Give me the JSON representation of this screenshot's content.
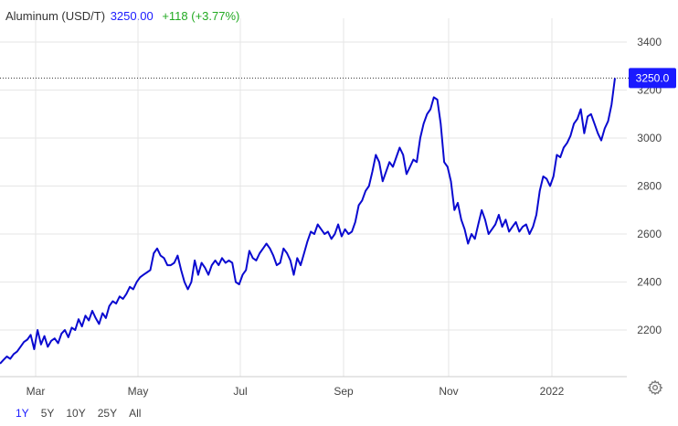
{
  "header": {
    "instrument": "Aluminum (USD/T)",
    "price": "3250.00",
    "change": "+118 (+3.77%)"
  },
  "current_label": "3250.0",
  "range_buttons": [
    {
      "label": "1Y",
      "active": true
    },
    {
      "label": "5Y",
      "active": false
    },
    {
      "label": "10Y",
      "active": false
    },
    {
      "label": "25Y",
      "active": false
    },
    {
      "label": "All",
      "active": false
    }
  ],
  "colors": {
    "line": "#0a0ad0",
    "accent": "#1a1aff",
    "positive": "#22aa22",
    "grid": "#e6e6e6"
  },
  "icons": {
    "settings": "gear-icon"
  },
  "chart_data": {
    "type": "line",
    "title": "Aluminum (USD/T)",
    "xlabel": "",
    "ylabel": "",
    "x_ticks": [
      "Mar",
      "May",
      "Jul",
      "Sep",
      "Nov",
      "2022"
    ],
    "y_ticks": [
      2200,
      2400,
      2600,
      2800,
      3000,
      3200,
      3400
    ],
    "ylim": [
      2020,
      3520
    ],
    "grid": true,
    "current_value": 3250.0,
    "series": [
      {
        "values": [
          2060,
          2075,
          2090,
          2080,
          2100,
          2110,
          2130,
          2150,
          2160,
          2180,
          2120,
          2200,
          2140,
          2175,
          2130,
          2155,
          2165,
          2145,
          2185,
          2200,
          2170,
          2210,
          2200,
          2245,
          2215,
          2260,
          2240,
          2280,
          2250,
          2225,
          2270,
          2250,
          2300,
          2320,
          2310,
          2340,
          2330,
          2350,
          2380,
          2370,
          2400,
          2420,
          2430,
          2440,
          2450,
          2520,
          2540,
          2510,
          2500,
          2470,
          2470,
          2480,
          2510,
          2450,
          2400,
          2370,
          2400,
          2490,
          2430,
          2480,
          2460,
          2430,
          2470,
          2490,
          2470,
          2500,
          2480,
          2490,
          2480,
          2400,
          2390,
          2430,
          2450,
          2530,
          2500,
          2490,
          2520,
          2540,
          2560,
          2540,
          2510,
          2470,
          2480,
          2540,
          2520,
          2490,
          2430,
          2500,
          2470,
          2520,
          2570,
          2610,
          2600,
          2640,
          2620,
          2600,
          2610,
          2580,
          2600,
          2640,
          2590,
          2620,
          2600,
          2610,
          2650,
          2720,
          2740,
          2780,
          2800,
          2860,
          2930,
          2900,
          2820,
          2860,
          2900,
          2880,
          2920,
          2960,
          2930,
          2850,
          2880,
          2910,
          2900,
          3000,
          3060,
          3100,
          3120,
          3170,
          3160,
          3060,
          2900,
          2880,
          2820,
          2700,
          2730,
          2660,
          2620,
          2560,
          2600,
          2580,
          2640,
          2700,
          2660,
          2600,
          2620,
          2640,
          2680,
          2630,
          2660,
          2610,
          2630,
          2650,
          2610,
          2630,
          2640,
          2600,
          2630,
          2680,
          2780,
          2840,
          2830,
          2800,
          2840,
          2930,
          2920,
          2960,
          2980,
          3010,
          3060,
          3080,
          3120,
          3020,
          3090,
          3100,
          3060,
          3020,
          2990,
          3040,
          3070,
          3140,
          3250
        ]
      }
    ]
  }
}
